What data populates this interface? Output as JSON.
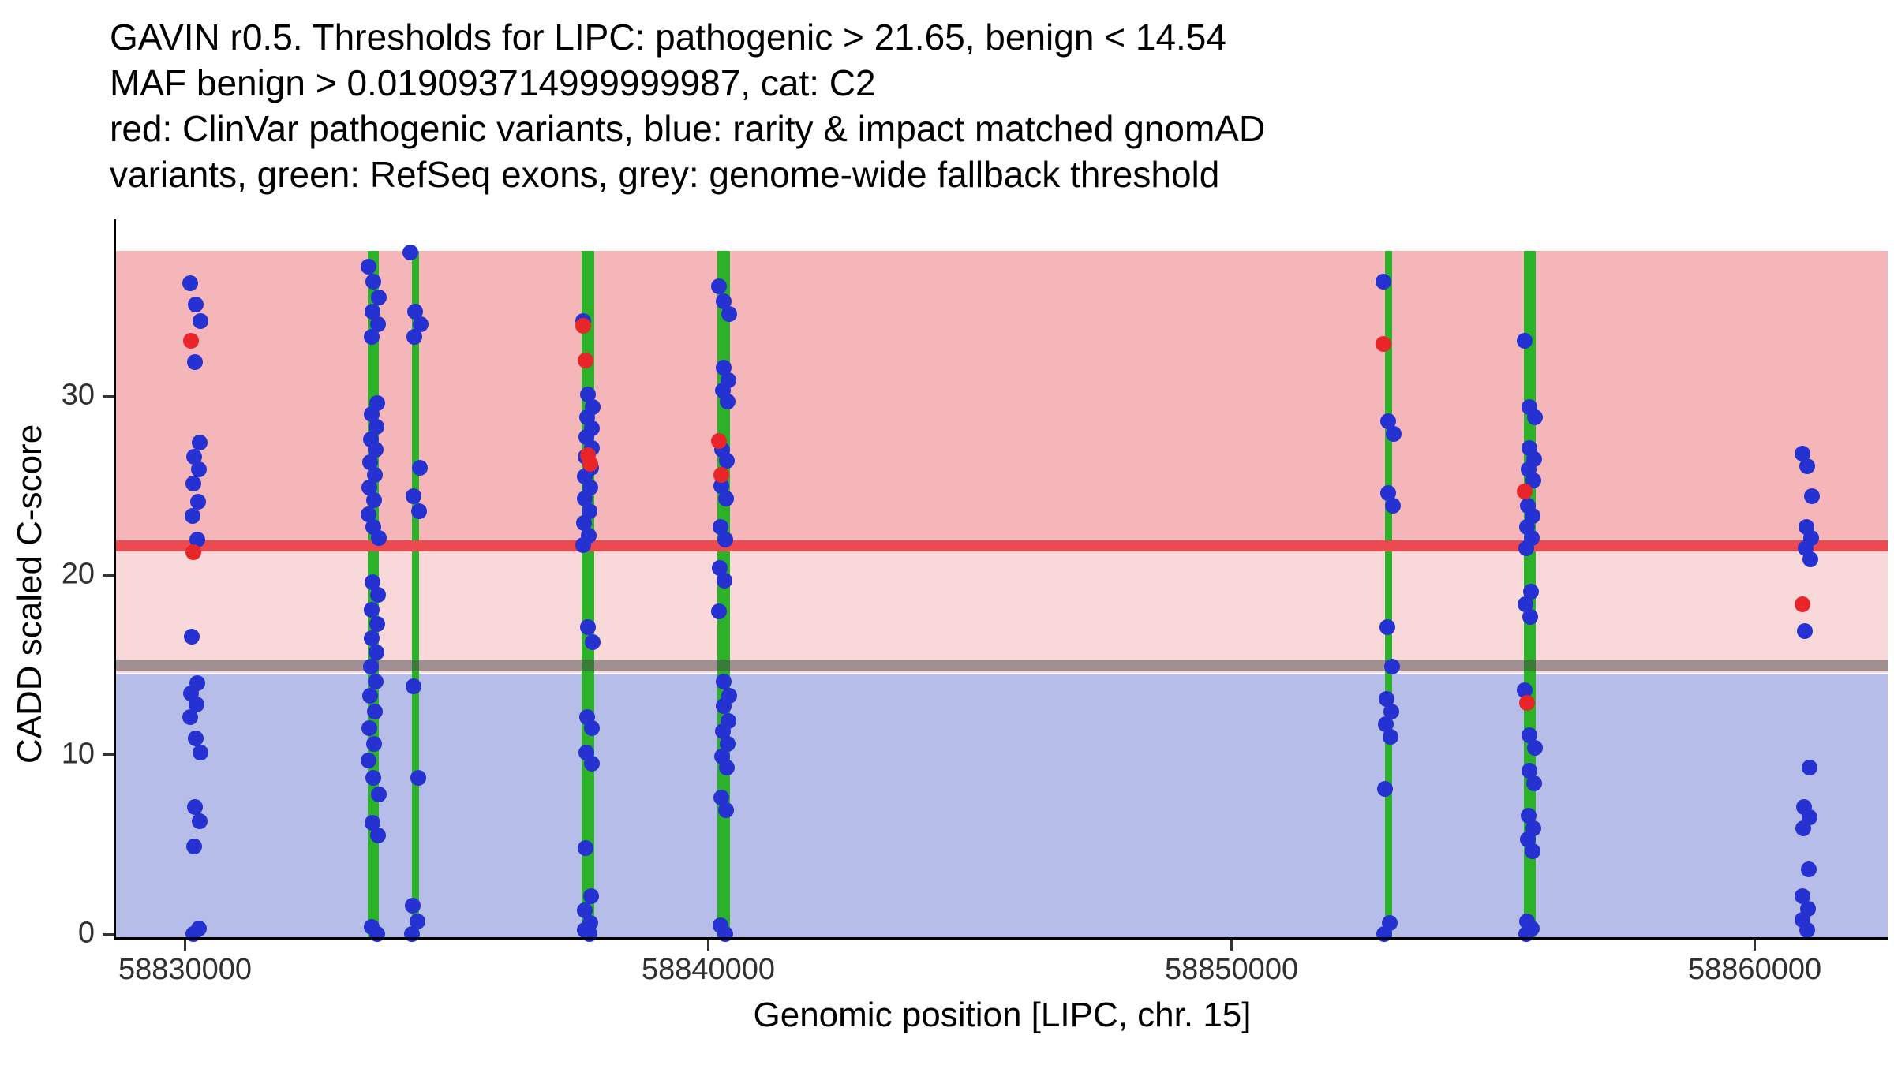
{
  "title_lines": [
    "GAVIN r0.5. Thresholds for LIPC: pathogenic > 21.65, benign < 14.54",
    "MAF benign > 0.019093714999999987, cat: C2",
    "red: ClinVar pathogenic variants, blue: rarity & impact matched gnomAD",
    "variants, green: RefSeq exons, grey: genome-wide fallback threshold"
  ],
  "colors": {
    "pathogenic_region": "#f5b6ba",
    "intermediate_region": "#f9d8da",
    "benign_region": "#b7bde9",
    "pathogenic_line": "#ea4a50",
    "fallback_line": "rgba(70,70,70,0.50)",
    "exon_green": "#2bb229",
    "dot_blue": "#2631d1",
    "dot_red": "#e8262a",
    "axis_black": "#000000",
    "tick_grey": "#333333"
  },
  "chart_data": {
    "type": "scatter",
    "title": "GAVIN r0.5. Thresholds for LIPC: pathogenic > 21.65, benign < 14.54, MAF benign > 0.019093714999999987, cat: C2",
    "xlabel": "Genomic position [LIPC, chr. 15]",
    "ylabel": "CADD scaled C-score",
    "xlim": [
      58828680,
      58862540
    ],
    "ylim": [
      0,
      38.1
    ],
    "x_ticks": [
      58830000,
      58840000,
      58850000,
      58860000
    ],
    "y_ticks": [
      0,
      10,
      20,
      30
    ],
    "thresholds": {
      "pathogenic": 21.65,
      "benign": 14.54,
      "genome_wide_fallback": 15.0
    },
    "exons": [
      {
        "x": 58833600,
        "bp": 210
      },
      {
        "x": 58834400,
        "bp": 140
      },
      {
        "x": 58837700,
        "bp": 240
      },
      {
        "x": 58840300,
        "bp": 240
      },
      {
        "x": 58853000,
        "bp": 140
      },
      {
        "x": 58855700,
        "bp": 240
      }
    ],
    "clusters": [
      {
        "x": 58830200,
        "blue": [
          36.3,
          35.1,
          34.2,
          31.9,
          27.4,
          26.6,
          25.9,
          25.1,
          24.1,
          23.3,
          22.0,
          16.6,
          14.0,
          13.4,
          12.8,
          12.1,
          10.9,
          10.1,
          7.1,
          6.3,
          4.9,
          0.3,
          0
        ],
        "red": [
          33.1,
          21.3
        ]
      },
      {
        "x": 58833600,
        "blue": [
          37.2,
          36.4,
          35.5,
          34.7,
          34.0,
          33.3,
          29.6,
          29.0,
          28.3,
          27.6,
          27.0,
          26.3,
          25.6,
          24.9,
          24.2,
          23.4,
          22.7,
          22.1,
          19.6,
          18.9,
          18.1,
          17.3,
          16.5,
          15.7,
          14.9,
          14.1,
          13.3,
          12.4,
          11.5,
          10.6,
          9.7,
          8.7,
          7.8,
          6.2,
          5.5,
          0.4,
          0
        ],
        "red": []
      },
      {
        "x": 58834400,
        "blue": [
          38.0,
          34.7,
          34.0,
          33.3,
          26.0,
          24.4,
          23.6,
          13.8,
          8.7,
          1.6,
          0.7,
          0
        ],
        "red": []
      },
      {
        "x": 58837700,
        "blue": [
          34.2,
          30.1,
          29.4,
          28.8,
          28.2,
          27.7,
          27.1,
          26.6,
          26.0,
          25.5,
          24.9,
          24.3,
          23.6,
          22.9,
          22.2,
          21.7,
          17.1,
          16.3,
          12.1,
          11.5,
          10.1,
          9.5,
          4.8,
          2.1,
          1.3,
          0.6,
          0.2,
          0
        ],
        "red": [
          33.9,
          32.0,
          26.7,
          26.2
        ]
      },
      {
        "x": 58840300,
        "blue": [
          36.1,
          35.3,
          34.6,
          31.6,
          30.9,
          30.3,
          29.7,
          27.0,
          26.4,
          25.0,
          24.3,
          22.7,
          22.0,
          20.4,
          19.7,
          18.0,
          14.1,
          13.3,
          12.7,
          11.9,
          11.3,
          10.6,
          9.9,
          9.3,
          7.6,
          6.9,
          0.5,
          0
        ],
        "red": [
          27.5,
          25.6
        ]
      },
      {
        "x": 58853000,
        "blue": [
          36.4,
          28.6,
          27.9,
          24.6,
          23.9,
          17.1,
          14.9,
          13.1,
          12.4,
          11.7,
          11.0,
          8.1,
          0.6,
          0
        ],
        "red": [
          32.9
        ]
      },
      {
        "x": 58855700,
        "blue": [
          33.1,
          29.4,
          28.8,
          27.1,
          26.5,
          25.9,
          25.3,
          23.9,
          23.3,
          22.7,
          22.1,
          21.5,
          19.1,
          18.4,
          17.7,
          13.6,
          11.1,
          10.4,
          9.1,
          8.4,
          6.6,
          5.9,
          5.3,
          4.6,
          0.7,
          0.3,
          0
        ],
        "red": [
          24.7,
          12.9
        ]
      },
      {
        "x": 58861000,
        "blue": [
          26.8,
          26.1,
          24.4,
          22.7,
          22.1,
          21.5,
          20.9,
          16.9,
          9.3,
          7.1,
          6.5,
          5.9,
          3.6,
          2.1,
          1.4,
          0.8,
          0.2
        ],
        "red": [
          18.4
        ]
      }
    ]
  }
}
